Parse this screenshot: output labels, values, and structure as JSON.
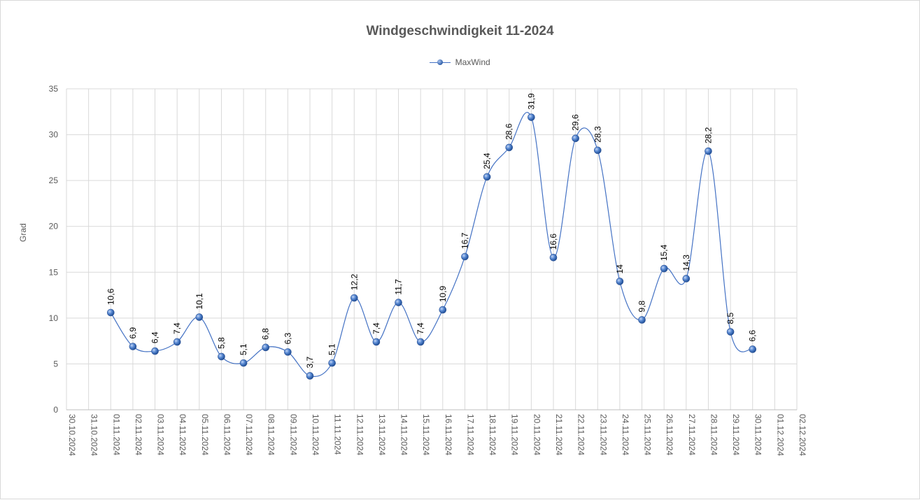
{
  "chart_data": {
    "type": "line",
    "title": "Windgeschwindigkeit  11-2024",
    "xlabel": "",
    "ylabel": "Grad",
    "ylim": [
      0,
      35
    ],
    "yticks": [
      "0",
      "5",
      "10",
      "15",
      "20",
      "25",
      "30",
      "35"
    ],
    "x_tick_labels": [
      "30.10.2024",
      "31.10.2024",
      "01.11.2024",
      "02.11.2024",
      "03.11.2024",
      "04.11.2024",
      "05.11.2024",
      "06.11.2024",
      "07.11.2024",
      "08.11.2024",
      "09.11.2024",
      "10.11.2024",
      "11.11.2024",
      "12.11.2024",
      "13.11.2024",
      "14.11.2024",
      "15.11.2024",
      "16.11.2024",
      "17.11.2024",
      "18.11.2024",
      "19.11.2024",
      "20.11.2024",
      "21.11.2024",
      "22.11.2024",
      "23.11.2024",
      "24.11.2024",
      "25.11.2024",
      "26.11.2024",
      "27.11.2024",
      "28.11.2024",
      "29.11.2024",
      "30.11.2024",
      "01.12.2024",
      "02.12.2024"
    ],
    "x": [
      "01.11.2024",
      "02.11.2024",
      "03.11.2024",
      "04.11.2024",
      "05.11.2024",
      "06.11.2024",
      "07.11.2024",
      "08.11.2024",
      "09.11.2024",
      "10.11.2024",
      "11.11.2024",
      "12.11.2024",
      "13.11.2024",
      "14.11.2024",
      "15.11.2024",
      "16.11.2024",
      "17.11.2024",
      "18.11.2024",
      "19.11.2024",
      "20.11.2024",
      "21.11.2024",
      "22.11.2024",
      "23.11.2024",
      "24.11.2024",
      "25.11.2024",
      "26.11.2024",
      "27.11.2024",
      "28.11.2024",
      "29.11.2024",
      "30.11.2024"
    ],
    "series": [
      {
        "name": "MaxWind",
        "values": [
          10.6,
          6.9,
          6.4,
          7.4,
          10.1,
          5.8,
          5.1,
          6.8,
          6.3,
          3.7,
          5.1,
          12.2,
          7.4,
          11.7,
          7.4,
          10.9,
          16.7,
          25.4,
          28.6,
          31.9,
          16.6,
          29.6,
          28.3,
          14,
          9.8,
          15.4,
          14.3,
          28.2,
          8.5,
          6.6
        ],
        "labels": [
          "10,6",
          "6,9",
          "6,4",
          "7,4",
          "10,1",
          "5,8",
          "5,1",
          "6,8",
          "6,3",
          "3,7",
          "5,1",
          "12,2",
          "7,4",
          "11,7",
          "7,4",
          "10,9",
          "16,7",
          "25,4",
          "28,6",
          "31,9",
          "16,6",
          "29,6",
          "28,3",
          "14",
          "9,8",
          "15,4",
          "14,3",
          "28,2",
          "8,5",
          "6,6"
        ],
        "color": "#4472c4"
      }
    ],
    "grid": true,
    "legend_position": "top"
  }
}
